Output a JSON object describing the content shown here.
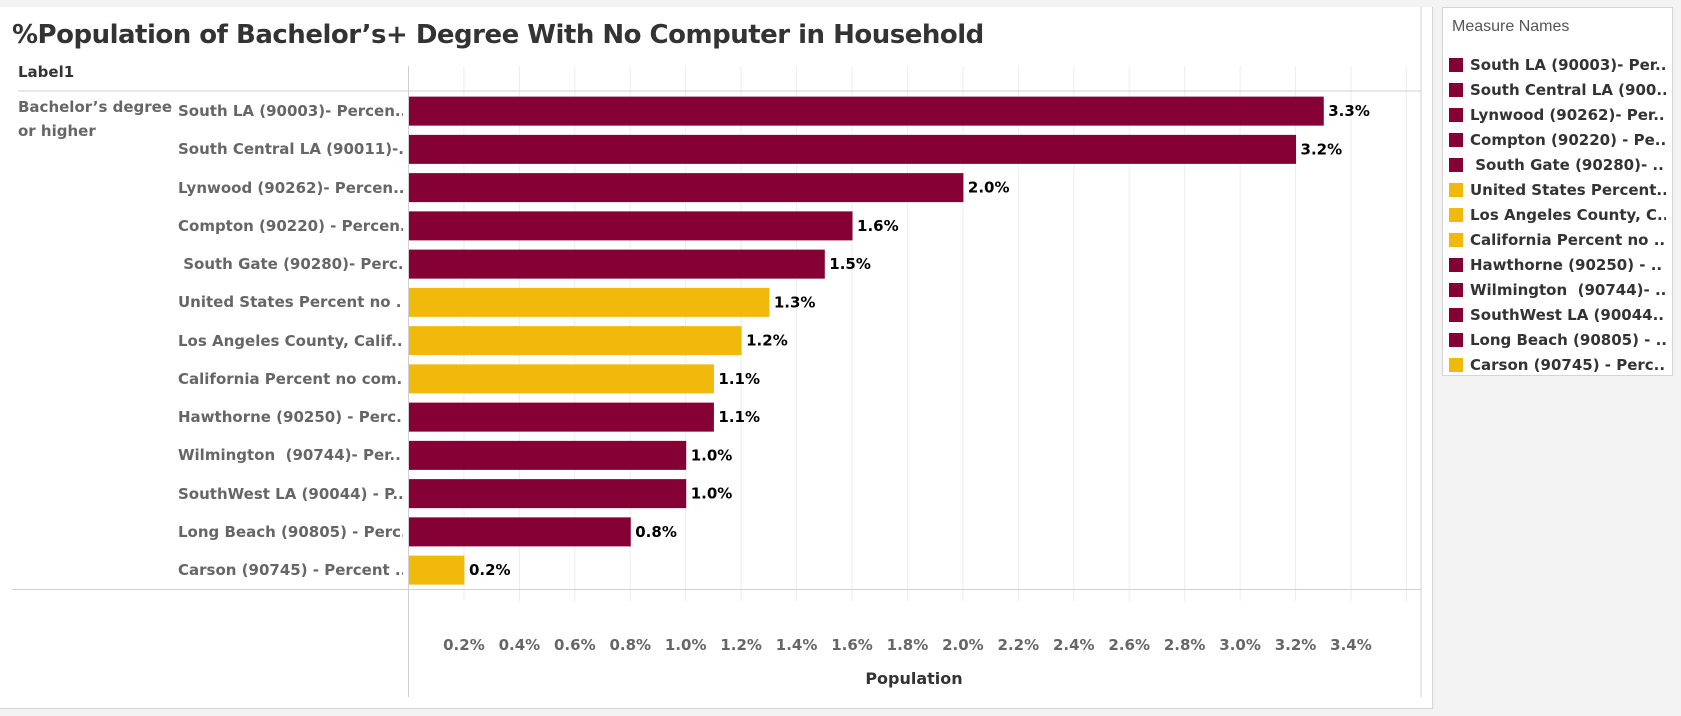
{
  "window": {
    "title": "%Population of Bachelor’s+ Degree With No Computer in Household"
  },
  "table": {
    "header_label": "Label1",
    "group_label": "Bachelor’s degree or higher"
  },
  "legend": {
    "title": "Measure Names",
    "items": [
      {
        "label": "South LA (90003)- Per..",
        "color": "#850034"
      },
      {
        "label": "South Central LA (900..",
        "color": "#850034"
      },
      {
        "label": "Lynwood (90262)- Per..",
        "color": "#850034"
      },
      {
        "label": "Compton (90220) - Pe..",
        "color": "#850034"
      },
      {
        "label": " South Gate (90280)- ..",
        "color": "#850034"
      },
      {
        "label": "United States Percent..",
        "color": "#f0b90b"
      },
      {
        "label": "Los Angeles County, C..",
        "color": "#f0b90b"
      },
      {
        "label": "California Percent no ..",
        "color": "#f0b90b"
      },
      {
        "label": "Hawthorne (90250) - ..",
        "color": "#850034"
      },
      {
        "label": "Wilmington  (90744)- ..",
        "color": "#850034"
      },
      {
        "label": "SouthWest LA (90044..",
        "color": "#850034"
      },
      {
        "label": "Long Beach (90805) - ..",
        "color": "#850034"
      },
      {
        "label": "Carson (90745) - Perc..",
        "color": "#f0b90b"
      }
    ]
  },
  "colors": {
    "local": "#850034",
    "reference": "#f0b90b"
  },
  "chart_data": {
    "type": "bar",
    "orientation": "horizontal",
    "title": "%Population of Bachelor’s+ Degree With No Computer in Household",
    "xlabel": "Population",
    "ylabel": "Label1",
    "xlim": [
      0,
      3.6
    ],
    "grid": true,
    "legend_title": "Measure Names",
    "legend_position": "right",
    "categories": [
      "South LA (90003)- Percen..",
      "South Central LA (90011)-..",
      "Lynwood (90262)- Percen..",
      "Compton (90220) - Percen..",
      " South Gate (90280)- Perc..",
      "United States Percent no ..",
      "Los Angeles County, Calif..",
      "California Percent no com..",
      "Hawthorne (90250) - Perc..",
      "Wilmington  (90744)- Per..",
      "SouthWest LA (90044) - P..",
      "Long Beach (90805) - Perc..",
      "Carson (90745) - Percent .."
    ],
    "values": [
      3.3,
      3.2,
      2.0,
      1.6,
      1.5,
      1.3,
      1.2,
      1.1,
      1.1,
      1.0,
      1.0,
      0.8,
      0.2
    ],
    "data_labels": [
      "3.3%",
      "3.2%",
      "2.0%",
      "1.6%",
      "1.5%",
      "1.3%",
      "1.2%",
      "1.1%",
      "1.1%",
      "1.0%",
      "1.0%",
      "0.8%",
      "0.2%"
    ],
    "bar_colors": [
      "#850034",
      "#850034",
      "#850034",
      "#850034",
      "#850034",
      "#f0b90b",
      "#f0b90b",
      "#f0b90b",
      "#850034",
      "#850034",
      "#850034",
      "#850034",
      "#f0b90b"
    ],
    "x_ticks": [
      0.2,
      0.4,
      0.6,
      0.8,
      1.0,
      1.2,
      1.4,
      1.6,
      1.8,
      2.0,
      2.2,
      2.4,
      2.6,
      2.8,
      3.0,
      3.2,
      3.4
    ],
    "x_tick_labels": [
      "0.2%",
      "0.4%",
      "0.6%",
      "0.8%",
      "1.0%",
      "1.2%",
      "1.4%",
      "1.6%",
      "1.8%",
      "2.0%",
      "2.2%",
      "2.4%",
      "2.6%",
      "2.8%",
      "3.0%",
      "3.2%",
      "3.4%"
    ],
    "gridlines": [
      0.2,
      0.4,
      0.6,
      0.8,
      1.0,
      1.2,
      1.4,
      1.6,
      1.8,
      2.0,
      2.2,
      2.4,
      2.6,
      2.8,
      3.0,
      3.2,
      3.4,
      3.6
    ]
  }
}
